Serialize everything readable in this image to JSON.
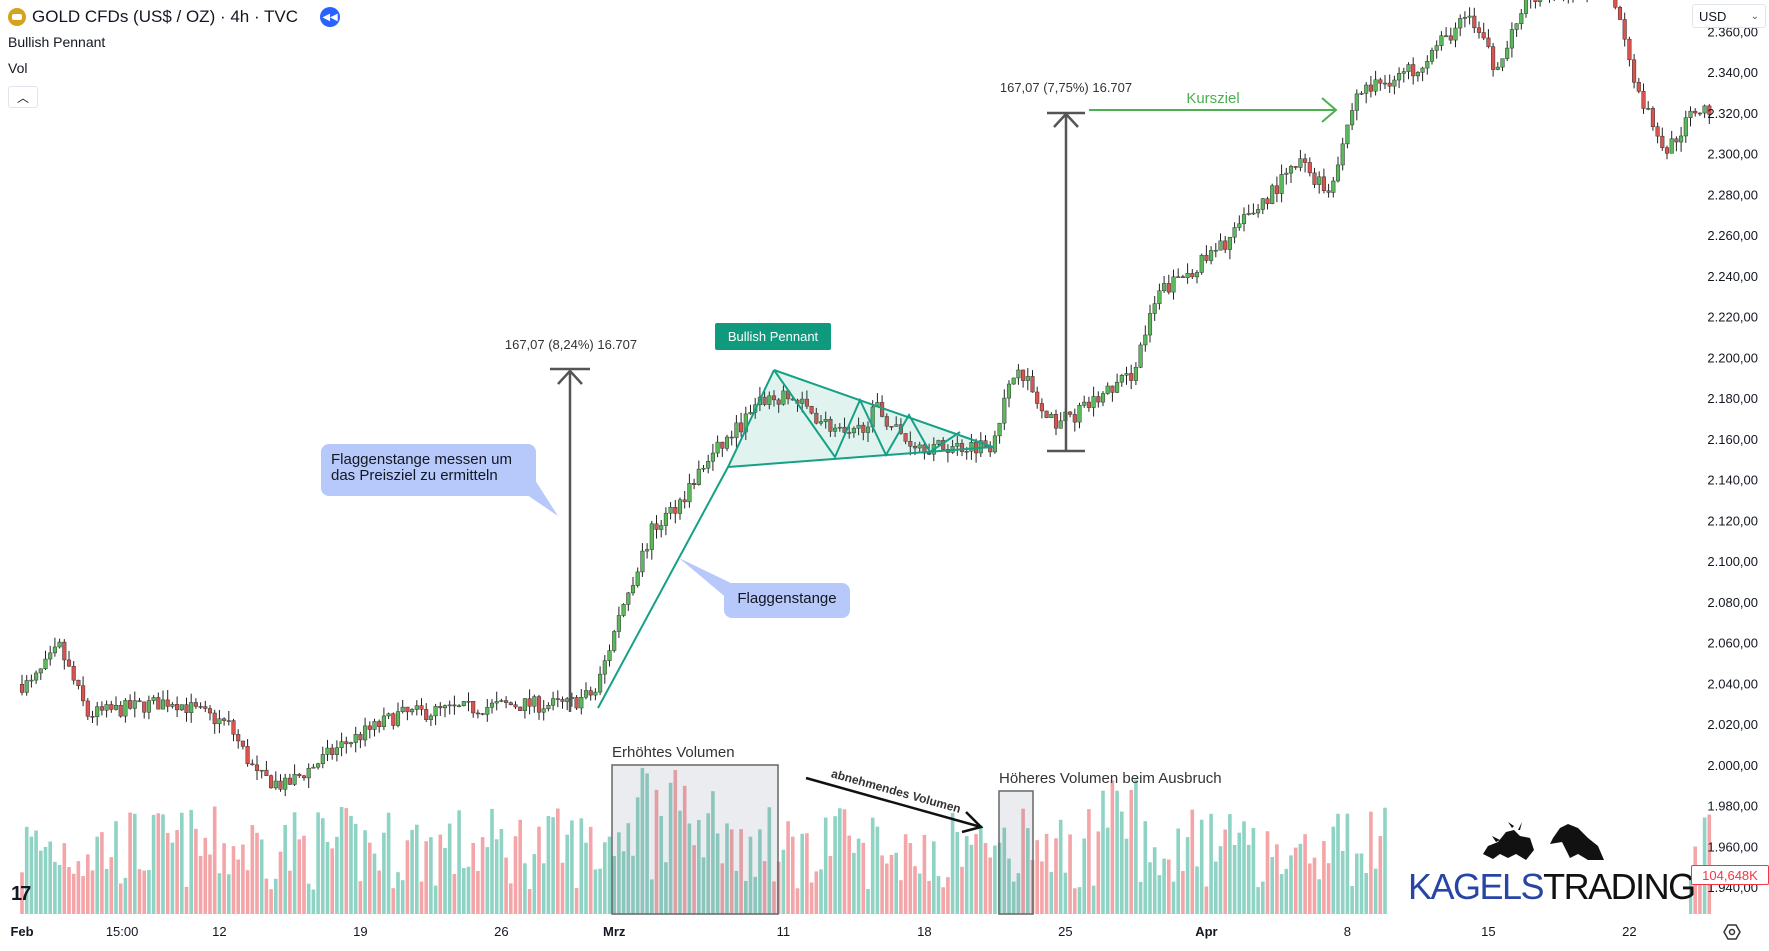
{
  "header": {
    "symbol_title": "GOLD CFDs (US$ / OZ) · 4h · TVC",
    "symbol_icon": "gold-bars-icon",
    "replay_icon": "rewind-icon",
    "indicator_1": "Bullish Pennant",
    "indicator_2": "Vol",
    "collapse_icon": "chevron-up-icon"
  },
  "currency_select": "USD",
  "last_volume_label": "104,648K",
  "colors": {
    "up": "#5cb85c",
    "down": "#d9534f",
    "vol_up": "#8fd3c5",
    "vol_down": "#f3a5a8",
    "pattern": "#16a085",
    "callout": "#b7c8fa",
    "target": "#4caf50",
    "brand_blue": "#2845a6"
  },
  "annotations": {
    "pennant_tag": "Bullish Pennant",
    "measure_left": "167,07 (8,24%) 16.707",
    "measure_right": "167,07 (7,75%) 16.707",
    "target_label": "Kursziel",
    "callout_measure": "Flaggenstange messen um das Preisziel zu ermitteln",
    "callout_pole": "Flaggenstange",
    "volume_box_1": "Erhöhtes Volumen",
    "volume_arrow": "abnehmendes Volumen",
    "volume_box_2": "Höheres Volumen beim Ausbruch"
  },
  "logo": {
    "part1": "KAGELS",
    "part2": "TRADING",
    "icons": [
      "bull-icon",
      "bear-icon"
    ]
  },
  "chart_data": {
    "type": "candlestick",
    "title": "GOLD CFDs (US$ / OZ) · 4h · TVC",
    "interval": "4h",
    "currency": "USD",
    "ylim": [
      1930,
      2365
    ],
    "y_ticks": [
      "2.360,00",
      "2.340,00",
      "2.320,00",
      "2.300,00",
      "2.280,00",
      "2.260,00",
      "2.240,00",
      "2.220,00",
      "2.200,00",
      "2.180,00",
      "2.160,00",
      "2.140,00",
      "2.120,00",
      "2.100,00",
      "2.080,00",
      "2.060,00",
      "2.040,00",
      "2.020,00",
      "2.000,00",
      "1.980,00",
      "1.960,00",
      "1.940,00"
    ],
    "x_ticks": [
      "Feb",
      "15:00",
      "12",
      "19",
      "26",
      "Mrz",
      "11",
      "18",
      "25",
      "Apr",
      "8",
      "15",
      "22"
    ],
    "grid": false,
    "approx_close_path": [
      {
        "date": "1 Feb",
        "close": 2040
      },
      {
        "date": "2 Feb",
        "close": 2058
      },
      {
        "date": "5 Feb",
        "close": 2025
      },
      {
        "date": "8 Feb",
        "close": 2032
      },
      {
        "date": "12 Feb",
        "close": 2020
      },
      {
        "date": "13 Feb",
        "close": 1995
      },
      {
        "date": "14 Feb",
        "close": 1990
      },
      {
        "date": "16 Feb",
        "close": 2010
      },
      {
        "date": "20 Feb",
        "close": 2025
      },
      {
        "date": "26 Feb",
        "close": 2030
      },
      {
        "date": "28 Feb",
        "close": 2030
      },
      {
        "date": "29 Feb",
        "close": 2036
      },
      {
        "date": "1 Mar",
        "close": 2080
      },
      {
        "date": "4 Mar",
        "close": 2115
      },
      {
        "date": "5 Mar",
        "close": 2130
      },
      {
        "date": "6 Mar",
        "close": 2150
      },
      {
        "date": "8 Mar",
        "close": 2180
      },
      {
        "date": "11 Mar",
        "close": 2180
      },
      {
        "date": "13 Mar",
        "close": 2160
      },
      {
        "date": "14 Mar",
        "close": 2175
      },
      {
        "date": "15 Mar",
        "close": 2160
      },
      {
        "date": "18 Mar",
        "close": 2156
      },
      {
        "date": "20 Mar",
        "close": 2158
      },
      {
        "date": "21 Mar",
        "close": 2198
      },
      {
        "date": "22 Mar",
        "close": 2168
      },
      {
        "date": "25 Mar",
        "close": 2172
      },
      {
        "date": "27 Mar",
        "close": 2192
      },
      {
        "date": "28 Mar",
        "close": 2232
      },
      {
        "date": "1 Apr",
        "close": 2252
      },
      {
        "date": "3 Apr",
        "close": 2282
      },
      {
        "date": "4 Apr",
        "close": 2296
      },
      {
        "date": "5 Apr",
        "close": 2282
      },
      {
        "date": "8 Apr",
        "close": 2330
      },
      {
        "date": "10 Apr",
        "close": 2342
      },
      {
        "date": "12 Apr",
        "close": 2368
      },
      {
        "date": "15 Apr",
        "close": 2340
      },
      {
        "date": "16 Apr",
        "close": 2378
      },
      {
        "date": "19 Apr",
        "close": 2385
      },
      {
        "date": "22 Apr",
        "close": 2330
      },
      {
        "date": "23 Apr",
        "close": 2302
      },
      {
        "date": "24 Apr",
        "close": 2322
      }
    ],
    "pattern": "Bullish Pennant",
    "measured_move": 167.07
  }
}
